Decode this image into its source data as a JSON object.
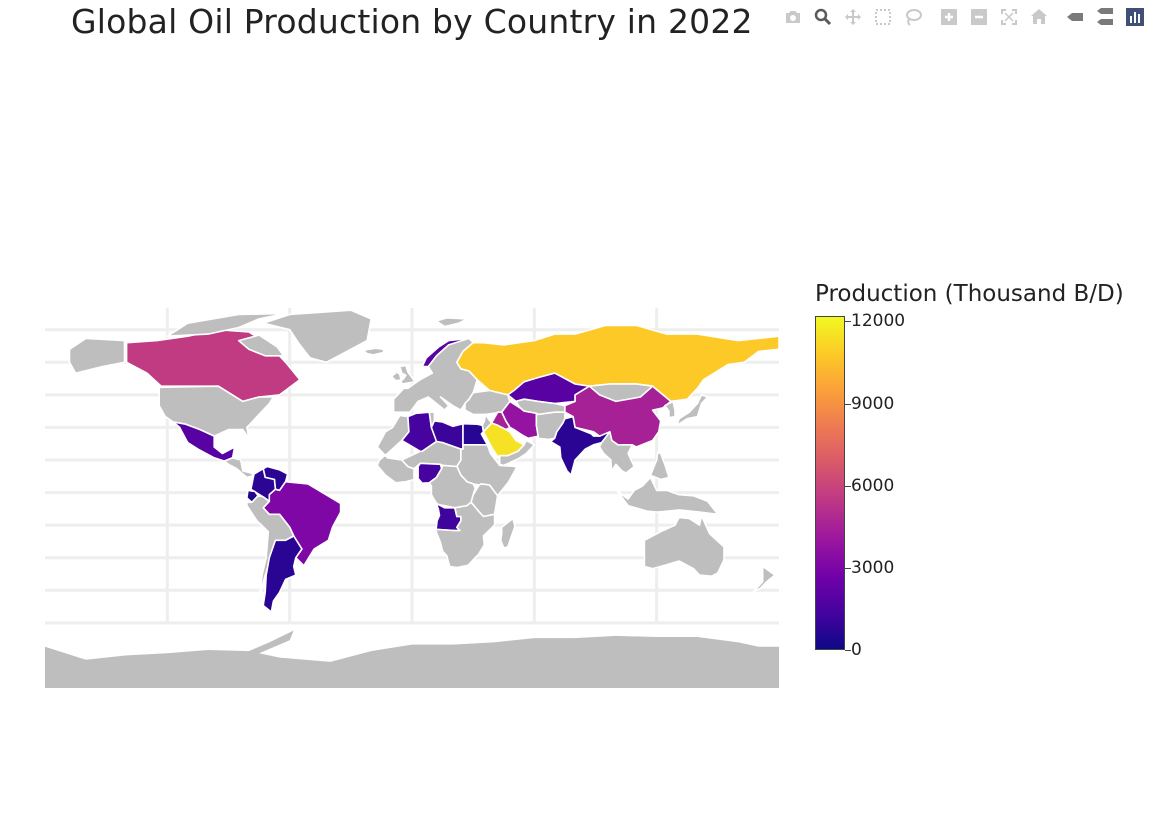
{
  "title": "Global Oil Production by Country in 2022",
  "modebar": [
    {
      "name": "camera-icon"
    },
    {
      "name": "zoom-icon",
      "active": true
    },
    {
      "name": "pan-icon"
    },
    {
      "name": "box-select-icon"
    },
    {
      "name": "lasso-select-icon"
    },
    {
      "gap": true
    },
    {
      "name": "zoom-in-icon"
    },
    {
      "name": "zoom-out-icon"
    },
    {
      "name": "autoscale-icon"
    },
    {
      "name": "reset-home-icon"
    },
    {
      "gap": true
    },
    {
      "name": "spike-lines-icon"
    },
    {
      "name": "compare-hover-icon"
    },
    {
      "name": "plotly-logo-icon"
    }
  ],
  "colorbar": {
    "title": "Production (Thousand B/D)",
    "min": 0,
    "max": 12200,
    "ticks": [
      {
        "value": 0,
        "label": "0"
      },
      {
        "value": 3000,
        "label": "3000"
      },
      {
        "value": 6000,
        "label": "6000"
      },
      {
        "value": 9000,
        "label": "9000"
      },
      {
        "value": 12000,
        "label": "12000"
      }
    ],
    "colorscale": [
      "#0d0887",
      "#46039f",
      "#7201a8",
      "#9c179e",
      "#bd3786",
      "#d8576b",
      "#ed7953",
      "#fb9f3a",
      "#fdca26",
      "#f0f921"
    ]
  },
  "map": {
    "land_color": "#bebebe",
    "border_color": "#ffffff",
    "grid_color": "#eeeeee",
    "projection": "equirectangular"
  },
  "chart_data": {
    "type": "choropleth",
    "title": "Global Oil Production by Country in 2022",
    "value_label": "Production (Thousand B/D)",
    "range": [
      0,
      12200
    ],
    "countries": [
      {
        "name": "United States",
        "value": null
      },
      {
        "name": "Saudi Arabia",
        "value": 11500
      },
      {
        "name": "Russia",
        "value": 10800
      },
      {
        "name": "Canada",
        "value": 5600
      },
      {
        "name": "China",
        "value": 4500
      },
      {
        "name": "Iraq",
        "value": 4500
      },
      {
        "name": "Brazil",
        "value": 3100
      },
      {
        "name": "Iran",
        "value": 3800
      },
      {
        "name": "Kazakhstan",
        "value": 1900
      },
      {
        "name": "Mexico",
        "value": 1900
      },
      {
        "name": "Algeria",
        "value": 1400
      },
      {
        "name": "Libya",
        "value": 1100
      },
      {
        "name": "Angola",
        "value": 1200
      },
      {
        "name": "Nigeria",
        "value": 1400
      },
      {
        "name": "Norway",
        "value": 1900
      },
      {
        "name": "Venezuela",
        "value": 700
      },
      {
        "name": "Colombia",
        "value": 750
      },
      {
        "name": "Argentina",
        "value": 700
      },
      {
        "name": "India",
        "value": 700
      },
      {
        "name": "Egypt",
        "value": 600
      },
      {
        "name": "Ecuador",
        "value": 480
      }
    ]
  }
}
